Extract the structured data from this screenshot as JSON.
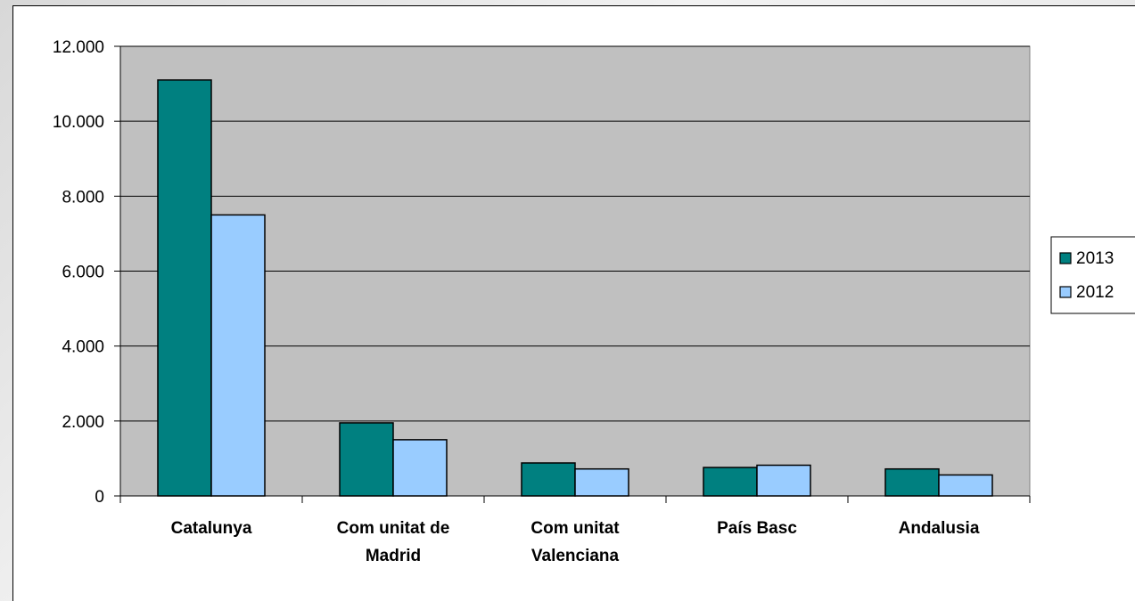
{
  "chart_data": {
    "type": "bar",
    "title": "",
    "xlabel": "",
    "ylabel": "",
    "categories": [
      [
        "Catalunya"
      ],
      [
        "Com unitat de",
        "Madrid"
      ],
      [
        "Com unitat",
        "Valenciana"
      ],
      [
        "País Basc"
      ],
      [
        "Andalusia"
      ]
    ],
    "series": [
      {
        "name": "2013",
        "color": "#008080",
        "values": [
          11100,
          1950,
          880,
          760,
          720
        ]
      },
      {
        "name": "2012",
        "color": "#99ccff",
        "values": [
          7500,
          1500,
          720,
          820,
          560
        ]
      }
    ],
    "ylim": [
      0,
      12000
    ],
    "yticks": [
      0,
      2000,
      4000,
      6000,
      8000,
      10000,
      12000
    ],
    "ytick_labels": [
      "0",
      "2.000",
      "4.000",
      "6.000",
      "8.000",
      "10.000",
      "12.000"
    ],
    "grid": true,
    "plot_background": "#c0c0c0",
    "legend_position": "right"
  }
}
